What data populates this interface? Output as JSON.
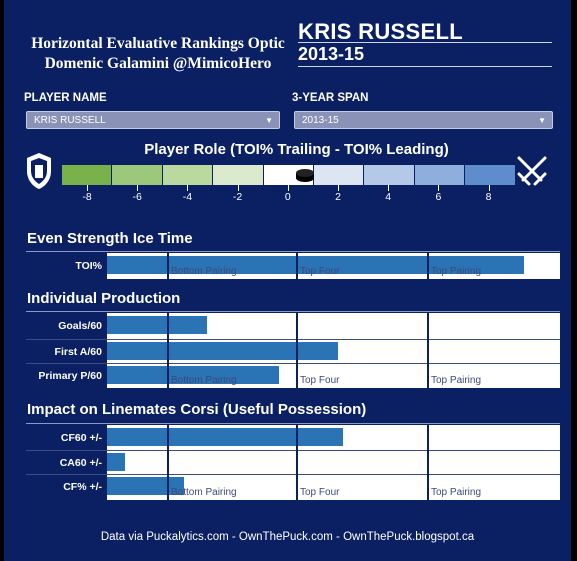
{
  "header": {
    "title_line1": "Horizontal Evaluative Rankings Optic",
    "title_line2": "Domenic Galamini @MimicoHero",
    "player": "KRIS RUSSELL",
    "season": "2013-15"
  },
  "filters": {
    "player_label": "PLAYER NAME",
    "player_value": "KRIS RUSSELL",
    "span_label": "3-YEAR SPAN",
    "span_value": "2013-15"
  },
  "role": {
    "title": "Player Role (TOI% Trailing - TOI% Leading)",
    "ticks": [
      "-8",
      "-6",
      "-4",
      "-2",
      "0",
      "2",
      "4",
      "6",
      "8"
    ],
    "value": 0.5,
    "range": [
      -9,
      9
    ],
    "colors": [
      "#79b24b",
      "#9dc77b",
      "#bad99f",
      "#dbeacd",
      "#ffffff",
      "#dde5f3",
      "#b5c8e8",
      "#8eaedc",
      "#5f8ccc"
    ],
    "left_icon": "shield-icon",
    "right_icon": "crossed-swords-icon"
  },
  "zones": [
    "Bottom Pairing",
    "Top Four",
    "Top Pairing"
  ],
  "chart_data": [
    {
      "type": "bar",
      "title": "Even Strength Ice Time",
      "categories": [
        "TOI%"
      ],
      "values": [
        0.92
      ]
    },
    {
      "type": "bar",
      "title": "Individual Production",
      "categories": [
        "Goals/60",
        "First A/60",
        "Primary P/60"
      ],
      "values": [
        0.22,
        0.51,
        0.38
      ]
    },
    {
      "type": "bar",
      "title": "Impact on Linemates Corsi (Useful Possession)",
      "categories": [
        "CF60 +/-",
        "CA60 +/-",
        "CF% +/-"
      ],
      "values": [
        0.52,
        0.04,
        0.17
      ]
    }
  ],
  "footer": "Data via Puckalytics.com - OwnThePuck.com - OwnThePuck.blogspot.ca"
}
